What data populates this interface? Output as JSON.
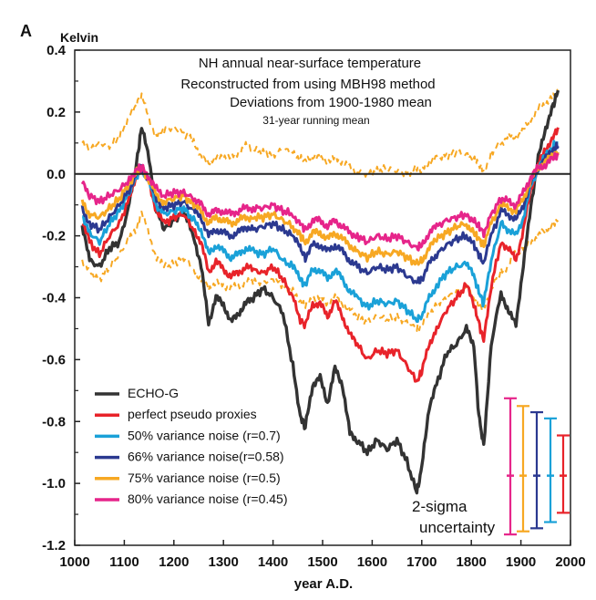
{
  "chart_data": {
    "type": "line",
    "panel_label": "A",
    "ylabel": "Kelvin",
    "xlabel": "year A.D.",
    "title_lines": [
      "NH annual near-surface temperature",
      "Reconstructed from using MBH98 method",
      "Deviations from 1900-1980 mean",
      "31-year running mean"
    ],
    "xlim": [
      1000,
      2000
    ],
    "ylim": [
      -1.2,
      0.4
    ],
    "xticks": [
      1000,
      1100,
      1200,
      1300,
      1400,
      1500,
      1600,
      1700,
      1800,
      1900,
      2000
    ],
    "xtick_labels": [
      "1000",
      "1100",
      "1200",
      "1300",
      "1400",
      "1500",
      "1600",
      "1700",
      "1800",
      "1900",
      "2000"
    ],
    "yticks": [
      -1.2,
      -1.0,
      -0.8,
      -0.6,
      -0.4,
      -0.2,
      0.0,
      0.2,
      0.4
    ],
    "ytick_labels": [
      "-1.2",
      "-1.0",
      "-0.8",
      "-0.6",
      "-0.4",
      "-0.2",
      "0.0",
      "0.2",
      "0.4"
    ],
    "zero_line": true,
    "x": [
      1015,
      1030,
      1050,
      1070,
      1090,
      1110,
      1125,
      1135,
      1150,
      1165,
      1180,
      1200,
      1220,
      1240,
      1255,
      1270,
      1285,
      1300,
      1315,
      1330,
      1345,
      1360,
      1380,
      1400,
      1420,
      1440,
      1455,
      1465,
      1480,
      1495,
      1510,
      1525,
      1540,
      1555,
      1570,
      1590,
      1610,
      1630,
      1650,
      1670,
      1690,
      1700,
      1715,
      1730,
      1750,
      1770,
      1790,
      1805,
      1815,
      1825,
      1840,
      1860,
      1875,
      1890,
      1905,
      1920,
      1935,
      1950,
      1965,
      1975
    ],
    "series": [
      {
        "name": "ECHO-G",
        "color": "#333333",
        "width": 3.4,
        "dashed": false,
        "values": [
          -0.17,
          -0.28,
          -0.3,
          -0.24,
          -0.22,
          -0.1,
          0.04,
          0.15,
          0.05,
          -0.12,
          -0.18,
          -0.15,
          -0.12,
          -0.2,
          -0.3,
          -0.48,
          -0.4,
          -0.42,
          -0.48,
          -0.45,
          -0.42,
          -0.4,
          -0.37,
          -0.4,
          -0.45,
          -0.62,
          -0.78,
          -0.82,
          -0.68,
          -0.66,
          -0.74,
          -0.63,
          -0.68,
          -0.84,
          -0.86,
          -0.9,
          -0.86,
          -0.89,
          -0.86,
          -0.93,
          -1.03,
          -0.95,
          -0.75,
          -0.68,
          -0.58,
          -0.55,
          -0.5,
          -0.55,
          -0.78,
          -0.88,
          -0.55,
          -0.38,
          -0.45,
          -0.48,
          -0.3,
          -0.1,
          0.05,
          0.15,
          0.22,
          0.27
        ]
      },
      {
        "name": "perfect pseudo proxies",
        "color": "#e8232a",
        "width": 3,
        "dashed": false,
        "values": [
          -0.15,
          -0.22,
          -0.26,
          -0.2,
          -0.16,
          -0.08,
          -0.01,
          0.03,
          -0.03,
          -0.12,
          -0.16,
          -0.14,
          -0.13,
          -0.18,
          -0.22,
          -0.32,
          -0.28,
          -0.31,
          -0.33,
          -0.32,
          -0.3,
          -0.31,
          -0.32,
          -0.3,
          -0.34,
          -0.4,
          -0.47,
          -0.49,
          -0.42,
          -0.42,
          -0.46,
          -0.41,
          -0.46,
          -0.52,
          -0.55,
          -0.6,
          -0.57,
          -0.58,
          -0.57,
          -0.62,
          -0.67,
          -0.64,
          -0.55,
          -0.5,
          -0.44,
          -0.4,
          -0.36,
          -0.42,
          -0.48,
          -0.54,
          -0.36,
          -0.22,
          -0.24,
          -0.28,
          -0.18,
          -0.05,
          0.03,
          0.08,
          0.12,
          0.15
        ]
      },
      {
        "name": "50% variance noise (r=0.7)",
        "color": "#1aa1d8",
        "width": 3,
        "dashed": false,
        "values": [
          -0.13,
          -0.19,
          -0.22,
          -0.16,
          -0.12,
          -0.06,
          -0.01,
          0.02,
          -0.03,
          -0.1,
          -0.13,
          -0.12,
          -0.11,
          -0.15,
          -0.18,
          -0.26,
          -0.23,
          -0.25,
          -0.27,
          -0.26,
          -0.24,
          -0.25,
          -0.26,
          -0.24,
          -0.28,
          -0.3,
          -0.34,
          -0.36,
          -0.31,
          -0.31,
          -0.34,
          -0.31,
          -0.34,
          -0.38,
          -0.4,
          -0.43,
          -0.41,
          -0.42,
          -0.41,
          -0.44,
          -0.47,
          -0.46,
          -0.4,
          -0.36,
          -0.32,
          -0.3,
          -0.29,
          -0.33,
          -0.38,
          -0.42,
          -0.28,
          -0.16,
          -0.18,
          -0.2,
          -0.14,
          -0.04,
          0.02,
          0.06,
          0.09,
          0.1
        ]
      },
      {
        "name": "66% variance noise(r=0.58)",
        "color": "#2b3990",
        "width": 3,
        "dashed": false,
        "values": [
          -0.11,
          -0.16,
          -0.18,
          -0.14,
          -0.1,
          -0.05,
          0.0,
          0.02,
          -0.02,
          -0.08,
          -0.11,
          -0.1,
          -0.09,
          -0.12,
          -0.14,
          -0.2,
          -0.18,
          -0.19,
          -0.2,
          -0.19,
          -0.17,
          -0.18,
          -0.17,
          -0.16,
          -0.18,
          -0.2,
          -0.24,
          -0.27,
          -0.23,
          -0.23,
          -0.25,
          -0.23,
          -0.25,
          -0.28,
          -0.3,
          -0.32,
          -0.3,
          -0.31,
          -0.3,
          -0.33,
          -0.35,
          -0.34,
          -0.29,
          -0.26,
          -0.23,
          -0.21,
          -0.2,
          -0.23,
          -0.26,
          -0.29,
          -0.2,
          -0.12,
          -0.13,
          -0.15,
          -0.1,
          -0.03,
          0.02,
          0.05,
          0.08,
          0.09
        ]
      },
      {
        "name": "75% variance noise (r=0.5)",
        "color": "#f7a823",
        "width": 3,
        "dashed": false,
        "values": [
          -0.09,
          -0.13,
          -0.14,
          -0.11,
          -0.08,
          -0.03,
          0.01,
          0.02,
          -0.02,
          -0.07,
          -0.09,
          -0.08,
          -0.07,
          -0.1,
          -0.12,
          -0.16,
          -0.14,
          -0.15,
          -0.16,
          -0.15,
          -0.14,
          -0.14,
          -0.14,
          -0.13,
          -0.15,
          -0.17,
          -0.2,
          -0.22,
          -0.19,
          -0.19,
          -0.21,
          -0.19,
          -0.21,
          -0.23,
          -0.25,
          -0.27,
          -0.25,
          -0.26,
          -0.25,
          -0.27,
          -0.29,
          -0.28,
          -0.24,
          -0.21,
          -0.19,
          -0.17,
          -0.16,
          -0.19,
          -0.21,
          -0.23,
          -0.16,
          -0.1,
          -0.11,
          -0.12,
          -0.08,
          -0.02,
          0.02,
          0.04,
          0.06,
          0.07
        ]
      },
      {
        "name": "80% variance noise (r=0.45)",
        "color": "#e6258a",
        "width": 3,
        "dashed": false,
        "values": [
          -0.03,
          -0.07,
          -0.09,
          -0.07,
          -0.05,
          -0.02,
          0.02,
          0.02,
          -0.01,
          -0.05,
          -0.07,
          -0.06,
          -0.06,
          -0.08,
          -0.1,
          -0.13,
          -0.12,
          -0.12,
          -0.13,
          -0.12,
          -0.11,
          -0.11,
          -0.11,
          -0.1,
          -0.12,
          -0.13,
          -0.16,
          -0.18,
          -0.15,
          -0.15,
          -0.17,
          -0.15,
          -0.17,
          -0.19,
          -0.2,
          -0.22,
          -0.2,
          -0.21,
          -0.2,
          -0.22,
          -0.24,
          -0.23,
          -0.19,
          -0.17,
          -0.15,
          -0.14,
          -0.13,
          -0.15,
          -0.17,
          -0.19,
          -0.13,
          -0.08,
          -0.09,
          -0.1,
          -0.06,
          -0.01,
          0.02,
          0.03,
          0.05,
          0.06
        ]
      },
      {
        "name": "75% noise 2-sigma upper",
        "color": "#f7a823",
        "width": 2,
        "dashed": true,
        "legend": false,
        "values": [
          0.1,
          0.08,
          0.1,
          0.09,
          0.12,
          0.18,
          0.23,
          0.25,
          0.18,
          0.12,
          0.14,
          0.15,
          0.13,
          0.11,
          0.05,
          0.04,
          0.05,
          0.06,
          0.05,
          0.07,
          0.09,
          0.08,
          0.07,
          0.06,
          0.08,
          0.07,
          0.05,
          0.04,
          0.06,
          0.05,
          0.04,
          0.05,
          0.04,
          0.02,
          0.01,
          0.0,
          0.01,
          0.02,
          0.01,
          0.0,
          0.02,
          0.01,
          0.04,
          0.05,
          0.06,
          0.07,
          0.06,
          0.05,
          0.03,
          0.01,
          0.07,
          0.1,
          0.12,
          0.12,
          0.14,
          0.18,
          0.21,
          0.23,
          0.25,
          0.26
        ]
      },
      {
        "name": "75% noise 2-sigma lower",
        "color": "#f7a823",
        "width": 2,
        "dashed": true,
        "legend": false,
        "values": [
          -0.28,
          -0.32,
          -0.34,
          -0.3,
          -0.26,
          -0.21,
          -0.18,
          -0.12,
          -0.2,
          -0.27,
          -0.3,
          -0.29,
          -0.27,
          -0.31,
          -0.34,
          -0.37,
          -0.35,
          -0.36,
          -0.37,
          -0.36,
          -0.35,
          -0.35,
          -0.35,
          -0.34,
          -0.36,
          -0.38,
          -0.41,
          -0.43,
          -0.4,
          -0.4,
          -0.42,
          -0.4,
          -0.42,
          -0.44,
          -0.46,
          -0.48,
          -0.46,
          -0.47,
          -0.46,
          -0.48,
          -0.5,
          -0.49,
          -0.45,
          -0.42,
          -0.4,
          -0.38,
          -0.37,
          -0.4,
          -0.42,
          -0.44,
          -0.37,
          -0.31,
          -0.3,
          -0.25,
          -0.24,
          -0.22,
          -0.2,
          -0.18,
          -0.16,
          -0.15
        ]
      }
    ],
    "error_bars": [
      {
        "name": "80%",
        "color": "#e6258a",
        "center": -0.975,
        "low": -1.165,
        "high": -0.725
      },
      {
        "name": "75%",
        "color": "#f7a823",
        "center": -0.975,
        "low": -1.155,
        "high": -0.75
      },
      {
        "name": "66%",
        "color": "#2b3990",
        "center": -0.975,
        "low": -1.145,
        "high": -0.77
      },
      {
        "name": "50%",
        "color": "#1aa1d8",
        "center": -0.975,
        "low": -1.125,
        "high": -0.79
      },
      {
        "name": "perfect",
        "color": "#e8232a",
        "center": -0.975,
        "low": -1.095,
        "high": -0.845
      }
    ],
    "annotation_lines": [
      "2-sigma",
      "uncertainty"
    ]
  }
}
